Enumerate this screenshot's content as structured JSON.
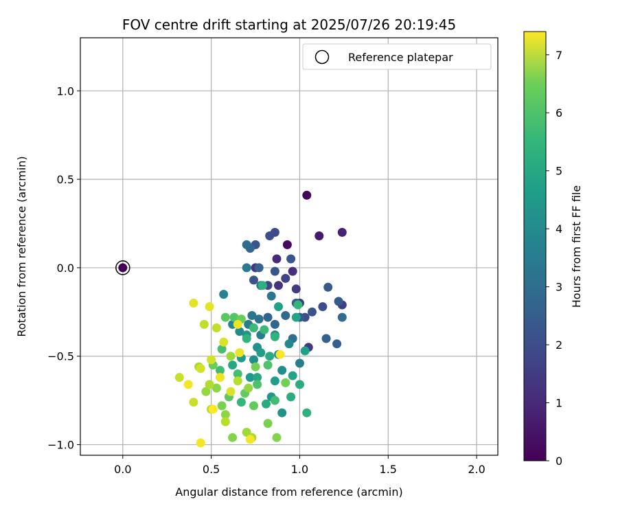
{
  "chart_data": {
    "type": "scatter",
    "title": "FOV centre drift starting at 2025/07/26 20:19:45",
    "xlabel": "Angular distance from reference (arcmin)",
    "ylabel": "Rotation from reference (arcmin)",
    "xlim": [
      -0.24,
      2.12
    ],
    "ylim": [
      -1.06,
      1.3
    ],
    "xticks": [
      0.0,
      0.5,
      1.0,
      1.5,
      2.0
    ],
    "xtick_labels": [
      "0.0",
      "0.5",
      "1.0",
      "1.5",
      "2.0"
    ],
    "yticks": [
      -1.0,
      -0.5,
      0.0,
      0.5,
      1.0
    ],
    "ytick_labels": [
      "−1.0",
      "−0.5",
      "0.0",
      "0.5",
      "1.0"
    ],
    "grid": true,
    "legend": {
      "placement": "top-right",
      "entries": [
        "Reference platepar"
      ]
    },
    "reference_point": {
      "x": 0.0,
      "y": 0.0,
      "hours": 0
    },
    "colorbar": {
      "label": "Hours from first FF file",
      "colormap": "viridis",
      "range": [
        0,
        7.4
      ],
      "ticks": [
        0,
        1,
        2,
        3,
        4,
        5,
        6,
        7
      ],
      "tick_labels": [
        "0",
        "1",
        "2",
        "3",
        "4",
        "5",
        "6",
        "7"
      ]
    },
    "points": [
      [
        1.04,
        0.41,
        0.1
      ],
      [
        0.93,
        0.13,
        0.2
      ],
      [
        1.11,
        0.18,
        0.5
      ],
      [
        1.24,
        0.2,
        0.7
      ],
      [
        0.87,
        0.05,
        0.9
      ],
      [
        0.96,
        -0.02,
        1.0
      ],
      [
        0.88,
        -0.1,
        1.1
      ],
      [
        0.75,
        0.0,
        1.2
      ],
      [
        0.98,
        -0.12,
        1.3
      ],
      [
        1.0,
        -0.2,
        1.3
      ],
      [
        1.24,
        -0.21,
        1.4
      ],
      [
        1.05,
        -0.45,
        1.3
      ],
      [
        0.92,
        -0.06,
        1.5
      ],
      [
        0.82,
        -0.1,
        1.6
      ],
      [
        0.86,
        0.2,
        1.7
      ],
      [
        0.83,
        0.18,
        1.8
      ],
      [
        1.03,
        -0.28,
        1.8
      ],
      [
        1.13,
        -0.22,
        1.8
      ],
      [
        1.07,
        -0.25,
        1.9
      ],
      [
        0.74,
        -0.07,
        1.9
      ],
      [
        0.75,
        0.13,
        2.0
      ],
      [
        0.86,
        -0.02,
        2.0
      ],
      [
        0.95,
        0.05,
        2.0
      ],
      [
        0.98,
        -0.2,
        2.1
      ],
      [
        1.0,
        -0.28,
        2.1
      ],
      [
        1.16,
        -0.11,
        2.1
      ],
      [
        1.22,
        -0.19,
        2.1
      ],
      [
        1.21,
        -0.43,
        2.2
      ],
      [
        1.15,
        -0.4,
        2.3
      ],
      [
        0.77,
        0.0,
        2.3
      ],
      [
        0.82,
        -0.28,
        2.4
      ],
      [
        0.86,
        -0.32,
        2.4
      ],
      [
        0.92,
        -0.27,
        2.5
      ],
      [
        0.72,
        0.11,
        2.5
      ],
      [
        0.7,
        0.13,
        2.6
      ],
      [
        1.24,
        -0.28,
        2.6
      ],
      [
        0.96,
        -0.4,
        2.7
      ],
      [
        0.77,
        -0.29,
        2.8
      ],
      [
        0.73,
        -0.27,
        2.9
      ],
      [
        0.84,
        -0.16,
        2.9
      ],
      [
        0.78,
        -0.1,
        3.0
      ],
      [
        0.7,
        0.0,
        3.0
      ],
      [
        0.71,
        -0.32,
        3.1
      ],
      [
        0.78,
        -0.38,
        3.1
      ],
      [
        0.86,
        -0.38,
        3.2
      ],
      [
        1.0,
        -0.54,
        3.2
      ],
      [
        0.57,
        -0.15,
        3.3
      ],
      [
        0.62,
        -0.32,
        3.4
      ],
      [
        0.66,
        -0.36,
        3.5
      ],
      [
        0.94,
        -0.43,
        3.5
      ],
      [
        0.9,
        -0.58,
        3.6
      ],
      [
        0.74,
        -0.52,
        3.6
      ],
      [
        0.88,
        -0.49,
        3.7
      ],
      [
        0.76,
        -0.45,
        3.7
      ],
      [
        0.7,
        -0.38,
        3.8
      ],
      [
        0.9,
        -0.82,
        3.8
      ],
      [
        0.84,
        -0.73,
        3.9
      ],
      [
        0.67,
        -0.51,
        4.0
      ],
      [
        0.72,
        -0.62,
        4.0
      ],
      [
        0.86,
        -0.64,
        4.1
      ],
      [
        0.78,
        -0.48,
        4.1
      ],
      [
        1.03,
        -0.47,
        4.2
      ],
      [
        0.88,
        -0.22,
        4.2
      ],
      [
        0.98,
        -0.28,
        4.3
      ],
      [
        0.96,
        -0.61,
        4.3
      ],
      [
        0.62,
        -0.55,
        4.4
      ],
      [
        0.76,
        -0.62,
        4.4
      ],
      [
        0.83,
        -0.5,
        4.5
      ],
      [
        0.81,
        -0.77,
        4.5
      ],
      [
        0.95,
        -0.73,
        4.6
      ],
      [
        1.0,
        -0.66,
        4.6
      ],
      [
        1.04,
        -0.82,
        4.7
      ],
      [
        0.79,
        -0.1,
        4.7
      ],
      [
        0.86,
        -0.39,
        4.8
      ],
      [
        0.7,
        -0.4,
        4.8
      ],
      [
        0.67,
        -0.76,
        4.9
      ],
      [
        0.99,
        -0.21,
        4.9
      ],
      [
        0.74,
        -0.34,
        5.0
      ],
      [
        0.8,
        -0.35,
        5.0
      ],
      [
        0.86,
        -0.75,
        5.1
      ],
      [
        0.55,
        -0.58,
        5.1
      ],
      [
        0.56,
        -0.46,
        5.2
      ],
      [
        0.65,
        -0.6,
        5.2
      ],
      [
        0.76,
        -0.66,
        5.3
      ],
      [
        0.82,
        -0.55,
        5.3
      ],
      [
        0.63,
        -0.28,
        5.4
      ],
      [
        0.58,
        -0.28,
        5.5
      ],
      [
        0.6,
        -0.73,
        5.5
      ],
      [
        0.69,
        -0.71,
        5.6
      ],
      [
        0.74,
        -0.78,
        5.6
      ],
      [
        0.51,
        -0.55,
        5.7
      ],
      [
        0.67,
        -0.29,
        5.7
      ],
      [
        0.75,
        -0.56,
        5.8
      ],
      [
        0.92,
        -0.65,
        5.8
      ],
      [
        0.82,
        -0.88,
        5.9
      ],
      [
        0.56,
        -0.78,
        5.9
      ],
      [
        0.62,
        -0.96,
        6.0
      ],
      [
        0.87,
        -0.96,
        6.0
      ],
      [
        0.53,
        -0.68,
        6.1
      ],
      [
        0.58,
        -0.83,
        6.1
      ],
      [
        0.71,
        -0.68,
        6.2
      ],
      [
        0.47,
        -0.7,
        6.2
      ],
      [
        0.61,
        -0.5,
        6.3
      ],
      [
        0.7,
        -0.93,
        6.3
      ],
      [
        0.73,
        -0.96,
        6.4
      ],
      [
        0.43,
        -0.56,
        6.4
      ],
      [
        0.49,
        -0.66,
        6.5
      ],
      [
        0.5,
        -0.8,
        6.5
      ],
      [
        0.58,
        -0.87,
        6.6
      ],
      [
        0.65,
        -0.64,
        6.6
      ],
      [
        0.46,
        -0.32,
        6.7
      ],
      [
        0.53,
        -0.34,
        6.7
      ],
      [
        0.32,
        -0.62,
        6.8
      ],
      [
        0.4,
        -0.76,
        6.8
      ],
      [
        0.44,
        -0.57,
        6.9
      ],
      [
        0.5,
        -0.52,
        6.9
      ],
      [
        0.57,
        -0.42,
        7.0
      ],
      [
        0.61,
        -0.7,
        7.0
      ],
      [
        0.4,
        -0.2,
        7.1
      ],
      [
        0.49,
        -0.22,
        7.1
      ],
      [
        0.55,
        -0.62,
        7.2
      ],
      [
        0.65,
        -0.32,
        7.2
      ],
      [
        0.44,
        -0.99,
        7.3
      ],
      [
        0.72,
        -0.97,
        7.3
      ],
      [
        0.89,
        -0.49,
        7.4
      ],
      [
        0.51,
        -0.8,
        7.4
      ],
      [
        0.37,
        -0.66,
        7.3
      ],
      [
        0.66,
        -0.48,
        7.2
      ]
    ]
  }
}
